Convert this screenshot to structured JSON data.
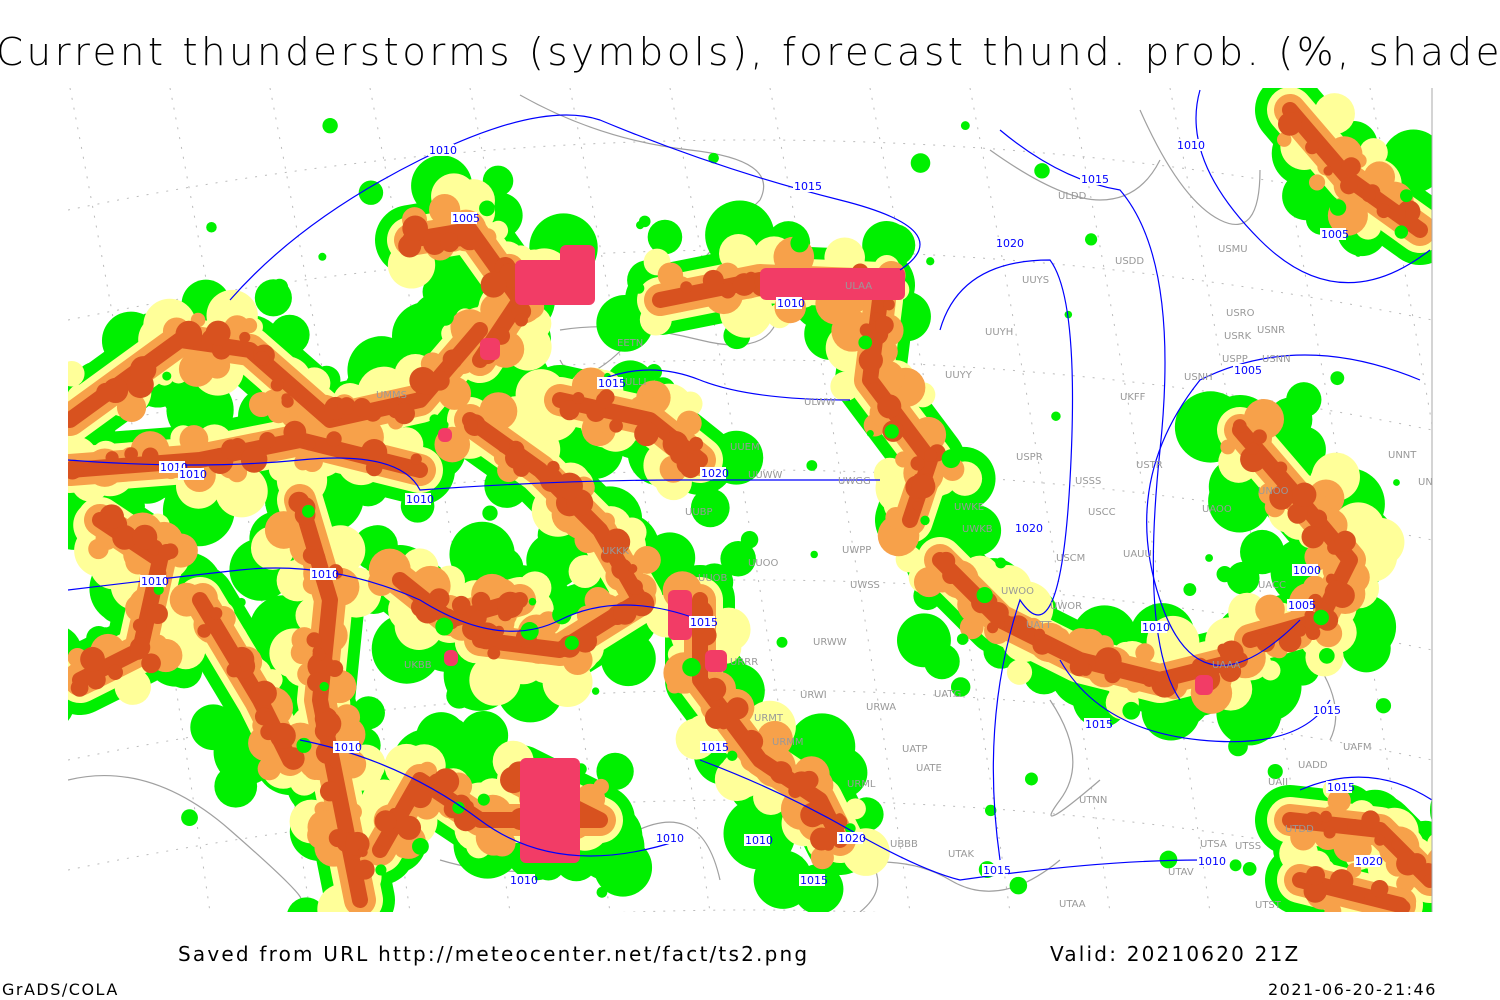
{
  "title": "Current thunderstorms (symbols), forecast thund. prob. (%, shaded)",
  "footer": {
    "saved_from": "Saved from URL http://meteocenter.net/fact/ts2.png",
    "valid": "Valid: 20210620 21Z",
    "software": "GrADS/COLA",
    "timestamp": "2021-06-20-21:46"
  },
  "colors": {
    "prob_low": "#00f000",
    "prob_mid": "#ffff99",
    "prob_high": "#f7a14a",
    "prob_max": "#d8521f",
    "current_thunderstorm": "#f23c66",
    "isobar": "#0000ff",
    "coastline": "#a0a0a0"
  },
  "stations": [
    "ULDD",
    "USDD",
    "USMU",
    "UUYS",
    "UUYH",
    "UUYY",
    "USRO",
    "USRK",
    "USNR",
    "USPP",
    "USNN",
    "ULAA",
    "ULWW",
    "UUEM",
    "UUWW",
    "UWGG",
    "UWKE",
    "UWKB",
    "USSS",
    "USCC",
    "USPR",
    "USTR",
    "UACC",
    "UAOO",
    "UNOO",
    "UNNT",
    "UNBB",
    "UAAA",
    "UADD",
    "UAII",
    "UAFM",
    "UATG",
    "UATT",
    "UWOO",
    "UWOR",
    "USCM",
    "UAUU",
    "UWPP",
    "UWSS",
    "URWA",
    "URWW",
    "URWI",
    "URML",
    "UATE",
    "UATP",
    "UTNN",
    "UTAK",
    "UBBB",
    "UTAA",
    "UTSS",
    "UTSA",
    "UTDD",
    "UTAV",
    "UTST",
    "UUOO",
    "UUOB",
    "URRR",
    "URMT",
    "URMM",
    "UUBP",
    "UKKK",
    "EETN",
    "ULLI",
    "UMMS",
    "UKBB",
    "USNH",
    "UKFF"
  ],
  "isobars": [
    "1010",
    "1015",
    "1015",
    "1010",
    "1005",
    "1020",
    "1005",
    "1010",
    "1015",
    "1005",
    "1010",
    "1010",
    "1020",
    "1010",
    "1020",
    "1010",
    "1010",
    "1000",
    "1005",
    "1015",
    "1010",
    "1015",
    "1015",
    "1010",
    "1015",
    "1020",
    "1015",
    "1010",
    "1010",
    "1020",
    "1015",
    "1015",
    "1010",
    "1010"
  ]
}
